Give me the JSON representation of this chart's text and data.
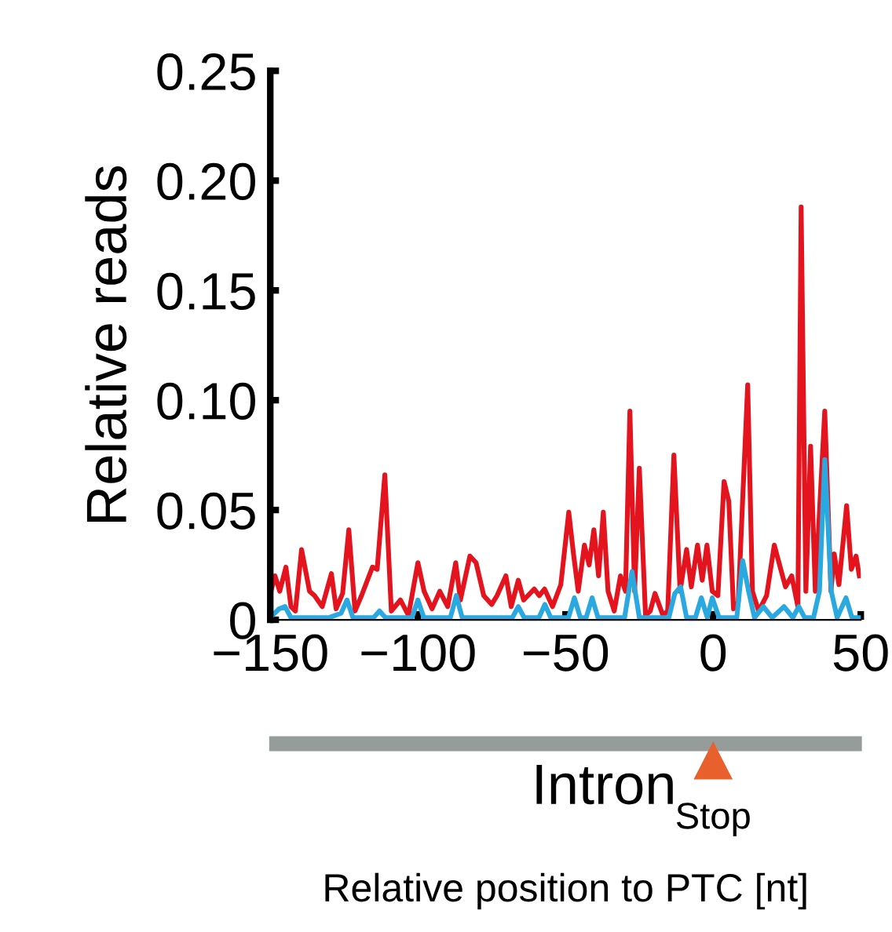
{
  "chart_data": {
    "type": "line",
    "ylabel": "Relative reads",
    "xlim": [
      -150,
      50
    ],
    "ylim": [
      0,
      0.25
    ],
    "xticks": [
      {
        "value": -150,
        "label": "−150"
      },
      {
        "value": -100,
        "label": "−100"
      },
      {
        "value": -50,
        "label": "−50"
      },
      0,
      50
    ],
    "yticks": [
      {
        "value": 0,
        "label": "0"
      },
      0.05,
      {
        "value": 0.1,
        "label": "0.10"
      },
      0.15,
      {
        "value": 0.2,
        "label": "0.20"
      },
      0.25
    ],
    "grid": false,
    "legend": false,
    "marker": "none",
    "line_style": "solid",
    "annotations": [
      "Intron",
      "Stop",
      "Relative position to PTC [nt]"
    ],
    "series": [
      {
        "color": "#e3141e",
        "x": [
          -150,
          -148.4,
          -146.8,
          -144.7,
          -143,
          -141.5,
          -139.4,
          -136.7,
          -135,
          -132.4,
          -129.3,
          -127.7,
          -125.5,
          -123.4,
          -121.3,
          -119.1,
          -115.4,
          -113.8,
          -111.2,
          -109,
          -105.9,
          -103.2,
          -100,
          -97.9,
          -95.2,
          -92.6,
          -89.9,
          -87.2,
          -85.6,
          -82.4,
          -80.3,
          -77.7,
          -75,
          -73.2,
          -70.2,
          -68.4,
          -66,
          -64.2,
          -60.6,
          -58.9,
          -57.1,
          -54.4,
          -51.6,
          -48.9,
          -47.3,
          -45.7,
          -43.6,
          -42,
          -40.4,
          -38.8,
          -37.2,
          -35.6,
          -33.5,
          -31.4,
          -29.7,
          -28.2,
          -26.6,
          -25,
          -22.9,
          -21.3,
          -19.7,
          -17,
          -15.4,
          -13.3,
          -11.2,
          -9,
          -7.4,
          -5.3,
          -3.7,
          -2.1,
          -0.3,
          1.6,
          3.7,
          5.3,
          6.9,
          8.5,
          10.1,
          11.7,
          13.3,
          15.4,
          18.1,
          20.7,
          22.9,
          24.5,
          26.6,
          28.7,
          29.8,
          31.4,
          33,
          34.6,
          37.8,
          39.9,
          41,
          42.6,
          45.2,
          46.8,
          48.4,
          49.5
        ],
        "values": [
          0.012,
          0.02,
          0.013,
          0.024,
          0.006,
          0.004,
          0.032,
          0.013,
          0.011,
          0.006,
          0.021,
          0.005,
          0.012,
          0.041,
          0.004,
          0.011,
          0.024,
          0.023,
          0.066,
          0.004,
          0.009,
          0.002,
          0.026,
          0.013,
          0.005,
          0.013,
          0.006,
          0.026,
          0.009,
          0.029,
          0.026,
          0.011,
          0.007,
          0.011,
          0.02,
          0.006,
          0.018,
          0.009,
          0.014,
          0.011,
          0.014,
          0.006,
          0.016,
          0.049,
          0.03,
          0.013,
          0.034,
          0.025,
          0.041,
          0.02,
          0.049,
          0.013,
          0.004,
          0.02,
          0.013,
          0.095,
          0.013,
          0.069,
          0.002,
          0.004,
          0.012,
          0.002,
          0.004,
          0.075,
          0.013,
          0.032,
          0.015,
          0.034,
          0.018,
          0.034,
          0.013,
          0.011,
          0.063,
          0.054,
          0.005,
          0.008,
          0.058,
          0.107,
          0.013,
          0.004,
          0.011,
          0.034,
          0.023,
          0.015,
          0.02,
          0.006,
          0.188,
          0.013,
          0.079,
          0.013,
          0.095,
          0.013,
          0.03,
          0.016,
          0.052,
          0.023,
          0.029,
          0.02
        ]
      },
      {
        "color": "#2aa9e0",
        "x": [
          -150,
          -147,
          -145,
          -143,
          -130,
          -126,
          -124,
          -122,
          -115,
          -113,
          -111,
          -102,
          -100,
          -98,
          -89,
          -87,
          -85,
          -68,
          -66,
          -64,
          -59,
          -57,
          -55,
          -49,
          -47,
          -45,
          -43,
          -41,
          -39,
          -30,
          -27.5,
          -25,
          -15,
          -13,
          -11,
          -9,
          -6,
          -4,
          -2,
          -0.3,
          2,
          8,
          10,
          12,
          14,
          17,
          20,
          24,
          27,
          29,
          31,
          34,
          36,
          37.8,
          40,
          42,
          45,
          47,
          50
        ],
        "values": [
          0.001,
          0.005,
          0.006,
          0.001,
          0.001,
          0.003,
          0.009,
          0.001,
          0.001,
          0.004,
          0.001,
          0.001,
          0.009,
          0.001,
          0.001,
          0.011,
          0.001,
          0.001,
          0.006,
          0.001,
          0.001,
          0.007,
          0.001,
          0.001,
          0.01,
          0.001,
          0.001,
          0.01,
          0.001,
          0.001,
          0.022,
          0.001,
          0.001,
          0.012,
          0.015,
          0.001,
          0.001,
          0.01,
          0.001,
          0.01,
          0.001,
          0.001,
          0.027,
          0.013,
          0.001,
          0.006,
          0.001,
          0.006,
          0.001,
          0.006,
          0.001,
          0.001,
          0.013,
          0.073,
          0.013,
          0.001,
          0.01,
          0.001,
          0.001
        ]
      }
    ]
  }
}
